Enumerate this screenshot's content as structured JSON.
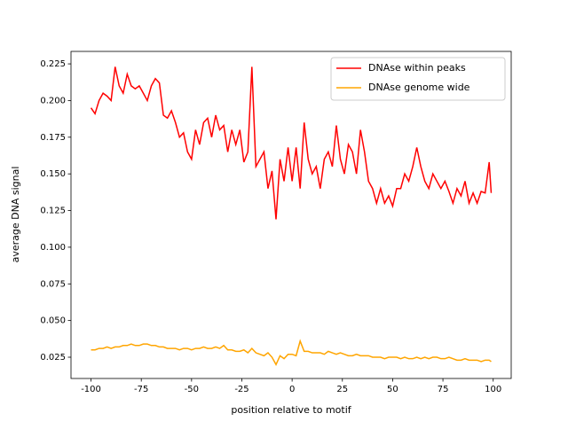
{
  "chart_data": {
    "type": "line",
    "xlabel": "position relative to motif",
    "ylabel": "average DNA signal",
    "x": [
      -100,
      -98,
      -96,
      -94,
      -92,
      -90,
      -88,
      -86,
      -84,
      -82,
      -80,
      -78,
      -76,
      -74,
      -72,
      -70,
      -68,
      -66,
      -64,
      -62,
      -60,
      -58,
      -56,
      -54,
      -52,
      -50,
      -48,
      -46,
      -44,
      -42,
      -40,
      -38,
      -36,
      -34,
      -32,
      -30,
      -28,
      -26,
      -24,
      -22,
      -20,
      -18,
      -16,
      -14,
      -12,
      -10,
      -8,
      -6,
      -4,
      -2,
      0,
      2,
      4,
      6,
      8,
      10,
      12,
      14,
      16,
      18,
      20,
      22,
      24,
      26,
      28,
      30,
      32,
      34,
      36,
      38,
      40,
      42,
      44,
      46,
      48,
      50,
      52,
      54,
      56,
      58,
      60,
      62,
      64,
      66,
      68,
      70,
      72,
      74,
      76,
      78,
      80,
      82,
      84,
      86,
      88,
      90,
      92,
      94,
      96,
      98,
      99
    ],
    "series": [
      {
        "name": "DNAse within peaks",
        "color": "#ff0000",
        "values": [
          0.195,
          0.191,
          0.2,
          0.205,
          0.203,
          0.2,
          0.223,
          0.21,
          0.205,
          0.218,
          0.21,
          0.208,
          0.21,
          0.205,
          0.2,
          0.21,
          0.215,
          0.212,
          0.19,
          0.188,
          0.193,
          0.185,
          0.175,
          0.178,
          0.165,
          0.16,
          0.18,
          0.17,
          0.185,
          0.188,
          0.175,
          0.19,
          0.18,
          0.183,
          0.165,
          0.18,
          0.17,
          0.18,
          0.158,
          0.165,
          0.223,
          0.155,
          0.16,
          0.165,
          0.14,
          0.152,
          0.119,
          0.16,
          0.145,
          0.168,
          0.145,
          0.168,
          0.14,
          0.185,
          0.16,
          0.15,
          0.155,
          0.14,
          0.16,
          0.165,
          0.155,
          0.183,
          0.16,
          0.15,
          0.17,
          0.165,
          0.15,
          0.18,
          0.165,
          0.145,
          0.14,
          0.13,
          0.14,
          0.13,
          0.135,
          0.128,
          0.14,
          0.14,
          0.15,
          0.145,
          0.155,
          0.168,
          0.155,
          0.145,
          0.14,
          0.15,
          0.145,
          0.14,
          0.145,
          0.138,
          0.13,
          0.14,
          0.135,
          0.145,
          0.13,
          0.137,
          0.13,
          0.138,
          0.137,
          0.158,
          0.137
        ]
      },
      {
        "name": "DNAse genome wide",
        "color": "#ffa500",
        "values": [
          0.03,
          0.03,
          0.031,
          0.031,
          0.032,
          0.031,
          0.032,
          0.032,
          0.033,
          0.033,
          0.034,
          0.033,
          0.033,
          0.034,
          0.034,
          0.033,
          0.033,
          0.032,
          0.032,
          0.031,
          0.031,
          0.031,
          0.03,
          0.031,
          0.031,
          0.03,
          0.031,
          0.031,
          0.032,
          0.031,
          0.031,
          0.032,
          0.031,
          0.033,
          0.03,
          0.03,
          0.029,
          0.029,
          0.03,
          0.028,
          0.031,
          0.028,
          0.027,
          0.026,
          0.028,
          0.025,
          0.02,
          0.026,
          0.024,
          0.027,
          0.027,
          0.026,
          0.036,
          0.029,
          0.029,
          0.028,
          0.028,
          0.028,
          0.027,
          0.029,
          0.028,
          0.027,
          0.028,
          0.027,
          0.026,
          0.026,
          0.027,
          0.026,
          0.026,
          0.026,
          0.025,
          0.025,
          0.025,
          0.024,
          0.025,
          0.025,
          0.025,
          0.024,
          0.025,
          0.024,
          0.024,
          0.025,
          0.024,
          0.025,
          0.024,
          0.025,
          0.025,
          0.024,
          0.024,
          0.025,
          0.024,
          0.023,
          0.023,
          0.024,
          0.023,
          0.023,
          0.023,
          0.022,
          0.023,
          0.023,
          0.022
        ]
      }
    ],
    "xlim": [
      -109.95,
      108.95
    ],
    "xticks": [
      -100,
      -75,
      -50,
      -25,
      0,
      25,
      50,
      75,
      100
    ],
    "ylim": [
      0.0105,
      0.2335
    ],
    "yticks": [
      0.025,
      {
        "value": 0.05,
        "label": "0.050"
      },
      0.075,
      {
        "value": 0.1,
        "label": "0.100"
      },
      0.125,
      {
        "value": 0.15,
        "label": "0.150"
      },
      0.175,
      {
        "value": 0.2,
        "label": "0.200"
      },
      0.225
    ],
    "legend": "upper right"
  }
}
